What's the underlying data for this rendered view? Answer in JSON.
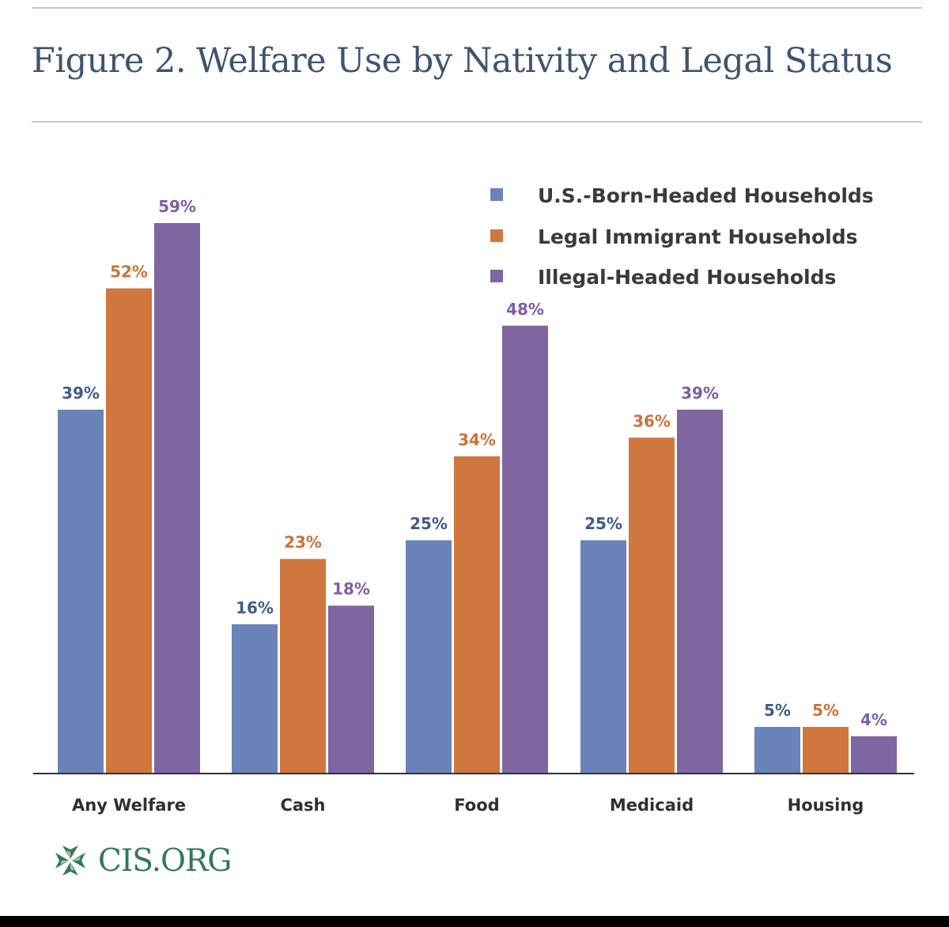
{
  "title": "Figure 2. Welfare Use by Nativity and Legal Status",
  "logo_text": "CIS.ORG",
  "chart_data": {
    "type": "bar",
    "title": "Figure 2. Welfare Use by Nativity and Legal Status",
    "xlabel": "",
    "ylabel": "",
    "ylim": [
      0,
      62
    ],
    "grid": false,
    "legend_position": "top-right",
    "categories": [
      "Any Welfare",
      "Cash",
      "Food",
      "Medicaid",
      "Housing"
    ],
    "series": [
      {
        "name": "U.S.-Born-Headed Households",
        "color": "#6a84b9",
        "label_color": "#415a8a",
        "values": [
          39,
          16,
          25,
          25,
          5
        ],
        "labels": [
          "39%",
          "16%",
          "25%",
          "25%",
          "5%"
        ]
      },
      {
        "name": "Legal Immigrant Households",
        "color": "#cf773e",
        "label_color": "#c8733a",
        "values": [
          52,
          23,
          34,
          36,
          5
        ],
        "labels": [
          "52%",
          "23%",
          "34%",
          "36%",
          "5%"
        ]
      },
      {
        "name": "Illegal-Headed Households",
        "color": "#7e66a1",
        "label_color": "#7b5ea8",
        "values": [
          59,
          18,
          48,
          39,
          4
        ],
        "labels": [
          "59%",
          "18%",
          "48%",
          "39%",
          "4%"
        ]
      }
    ]
  }
}
